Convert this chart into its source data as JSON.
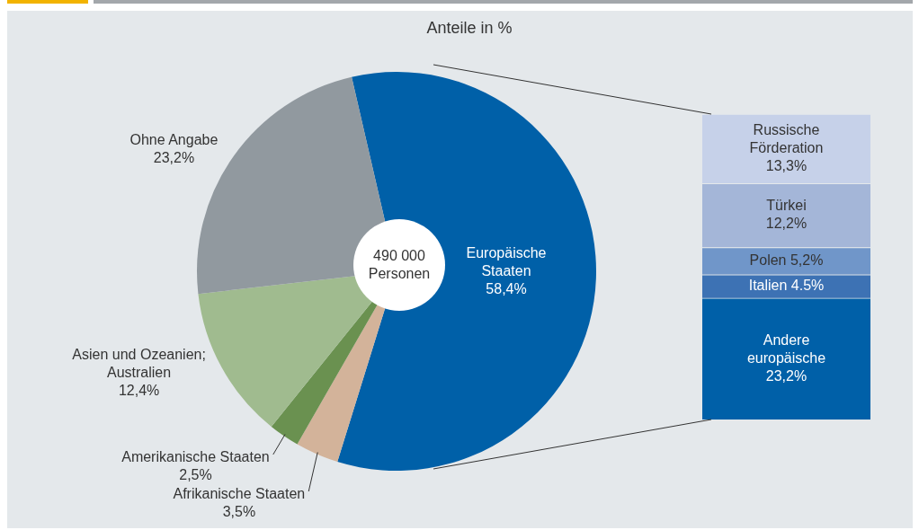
{
  "chart_data": [
    {
      "type": "pie",
      "title": "Anteile in %",
      "categories": [
        "Europäische Staaten",
        "Afrikanische Staaten",
        "Amerikanische Staaten",
        "Asien und Ozeanien; Australien",
        "Ohne Angabe"
      ],
      "values": [
        58.4,
        3.5,
        2.5,
        12.4,
        23.2
      ],
      "colors": [
        "#0060a8",
        "#d3b39a",
        "#6a9150",
        "#a0bb8f",
        "#91999f"
      ],
      "value_labels": [
        "58,4%",
        "3,5%",
        "2,5%",
        "12,4%",
        "23,2%"
      ],
      "annotations": [
        "490 000 Personen"
      ]
    },
    {
      "type": "bar",
      "stacked": true,
      "tick_labels": false,
      "categories": [
        null
      ],
      "series": [
        {
          "name": "Andere europäische",
          "color": "#0060a8",
          "values": [
            23.2
          ],
          "value_labels": [
            "23,2%"
          ]
        },
        {
          "name": "Italien",
          "color": "#3d72b4",
          "values": [
            4.5
          ],
          "value_labels": [
            "4.5%"
          ]
        },
        {
          "name": "Polen",
          "color": "#7096c9",
          "values": [
            5.2
          ],
          "value_labels": [
            "5,2%"
          ]
        },
        {
          "name": "Türkei",
          "color": "#a4b6d8",
          "values": [
            12.2
          ],
          "value_labels": [
            "12,2%"
          ]
        },
        {
          "name": "Russische Förderation",
          "color": "#c6d1e9",
          "values": [
            13.3
          ],
          "value_labels": [
            "13,3%"
          ]
        }
      ]
    }
  ]
}
